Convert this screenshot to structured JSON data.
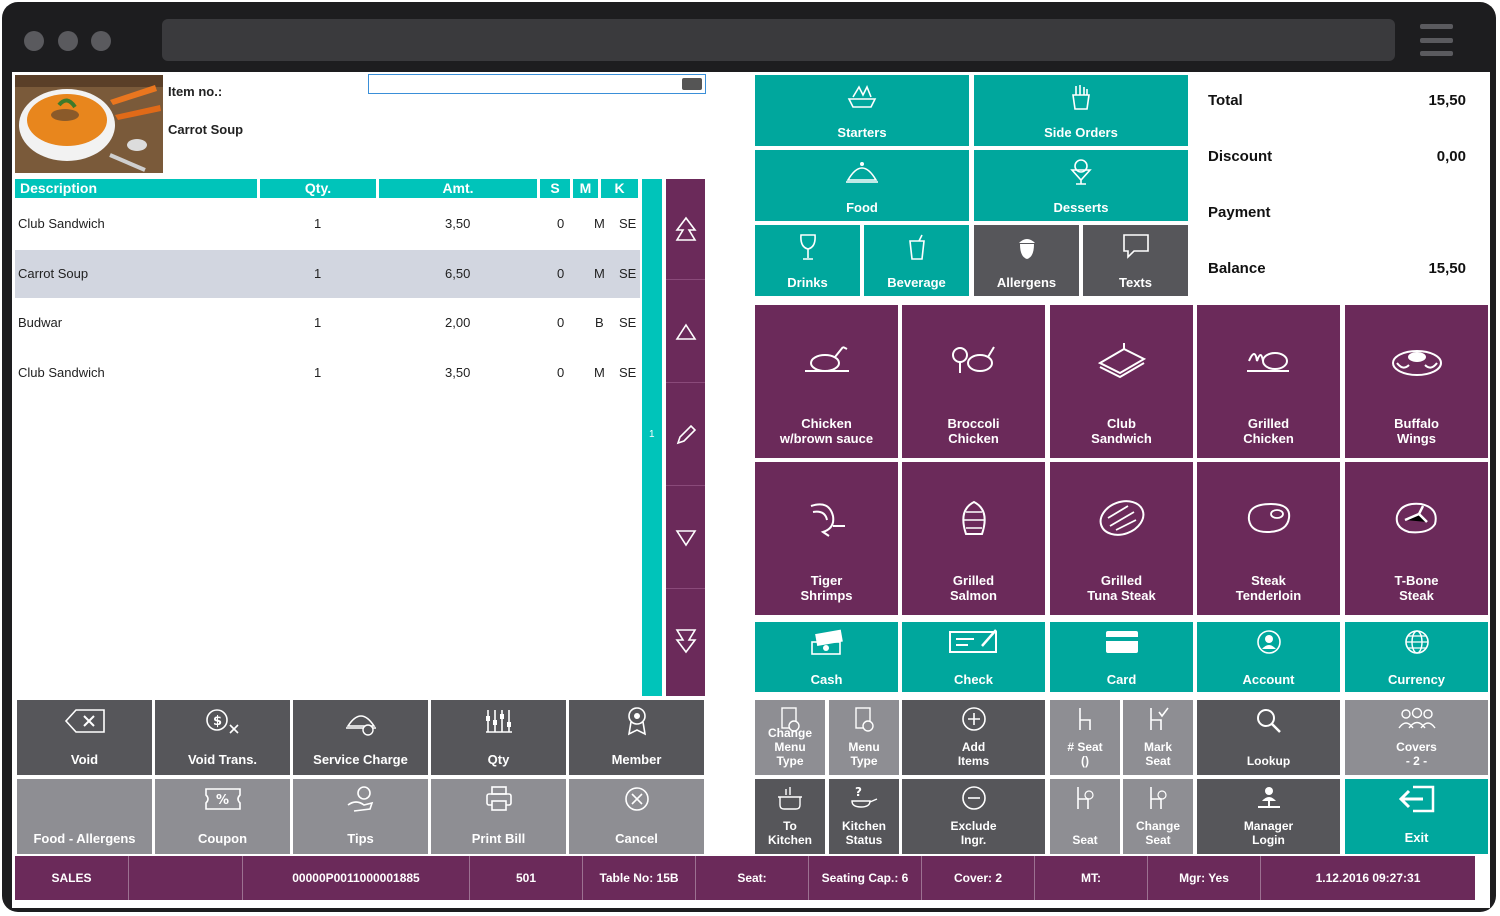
{
  "item": {
    "no_label": "Item no.:",
    "name": "Carrot Soup"
  },
  "table": {
    "headers": {
      "desc": "Description",
      "qty": "Qty.",
      "amt": "Amt.",
      "s": "S",
      "m": "M",
      "k": "K"
    },
    "rows": [
      {
        "desc": "Club Sandwich",
        "qty": "1",
        "amt": "3,50",
        "s": "0",
        "m": "M",
        "k": "SE"
      },
      {
        "desc": "Carrot Soup",
        "qty": "1",
        "amt": "6,50",
        "s": "0",
        "m": "M",
        "k": "SE"
      },
      {
        "desc": "Budwar",
        "qty": "1",
        "amt": "2,00",
        "s": "0",
        "m": "B",
        "k": "SE"
      },
      {
        "desc": "Club Sandwich",
        "qty": "1",
        "amt": "3,50",
        "s": "0",
        "m": "M",
        "k": "SE"
      }
    ],
    "scroll_marker": "1"
  },
  "categories": {
    "starters": "Starters",
    "side_orders": "Side Orders",
    "food": "Food",
    "desserts": "Desserts",
    "drinks": "Drinks",
    "beverage": "Beverage",
    "allergens": "Allergens",
    "texts": "Texts"
  },
  "totals": {
    "total_label": "Total",
    "total_value": "15,50",
    "discount_label": "Discount",
    "discount_value": "0,00",
    "payment_label": "Payment",
    "balance_label": "Balance",
    "balance_value": "15,50"
  },
  "menu_items": [
    {
      "label": "Chicken\nw/brown sauce",
      "icon": "roast-chicken-icon"
    },
    {
      "label": "Broccoli\nChicken",
      "icon": "broccoli-chicken-icon"
    },
    {
      "label": "Club\nSandwich",
      "icon": "sandwich-icon"
    },
    {
      "label": "Grilled\nChicken",
      "icon": "grilled-chicken-icon"
    },
    {
      "label": "Buffalo\nWings",
      "icon": "wings-platter-icon"
    },
    {
      "label": "Tiger\nShrimps",
      "icon": "shrimp-icon"
    },
    {
      "label": "Grilled\nSalmon",
      "icon": "salmon-icon"
    },
    {
      "label": "Grilled\nTuna Steak",
      "icon": "tuna-steak-icon"
    },
    {
      "label": "Steak\nTenderloin",
      "icon": "steak-icon"
    },
    {
      "label": "T-Bone\nSteak",
      "icon": "tbone-icon"
    }
  ],
  "payments": {
    "cash": "Cash",
    "check": "Check",
    "card": "Card",
    "account": "Account",
    "currency": "Currency"
  },
  "actions_left": {
    "void": "Void",
    "void_trans": "Void Trans.",
    "service_charge": "Service Charge",
    "qty": "Qty",
    "member": "Member",
    "food_allergens": "Food - Allergens",
    "coupon": "Coupon",
    "tips": "Tips",
    "print_bill": "Print Bill",
    "cancel": "Cancel"
  },
  "actions_right": {
    "change_menu_type": "Change\nMenu\nType",
    "menu_type": "Menu\nType",
    "add_items": "Add\nItems",
    "seat_num": "# Seat\n()",
    "mark_seat": "Mark\nSeat",
    "lookup": "Lookup",
    "covers": "Covers\n- 2 -",
    "to_kitchen": "To\nKitchen",
    "kitchen_status": "Kitchen\nStatus",
    "exclude_ingr": "Exclude\nIngr.",
    "seat": "Seat",
    "change_seat": "Change\nSeat",
    "manager_login": "Manager\nLogin",
    "exit": "Exit"
  },
  "status_bar": {
    "mode": "SALES",
    "blank": "",
    "trans_id": "00000P0011000001885",
    "terminal": "501",
    "table": "Table No: 15B",
    "seat": "Seat:",
    "seating_cap": "Seating Cap.: 6",
    "cover": "Cover: 2",
    "mt": "MT:",
    "mgr": "Mgr: Yes",
    "datetime": "1.12.2016 09:27:31"
  },
  "colors": {
    "teal": "#00a79d",
    "purple": "#6b2a5a",
    "dark_gray": "#56565a",
    "light_gray": "#8e8e93",
    "header": "#00c4ba"
  }
}
